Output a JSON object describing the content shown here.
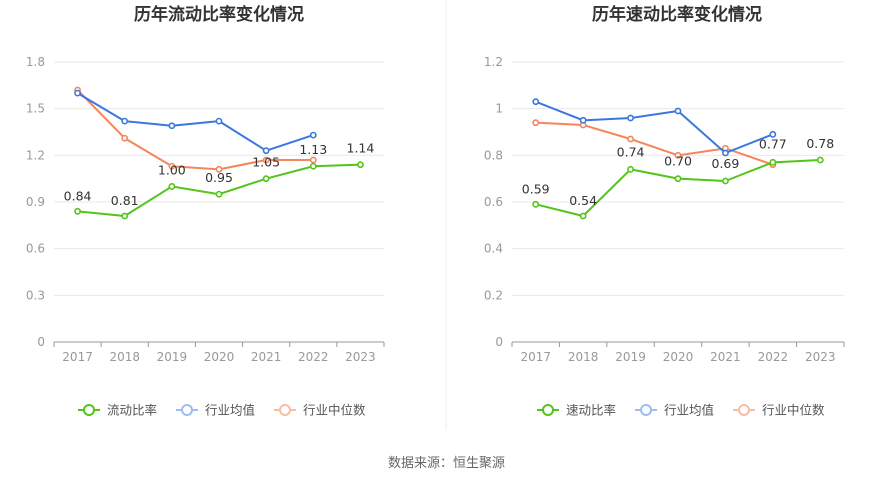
{
  "footer": {
    "source": "数据来源：恒生聚源"
  },
  "colors": {
    "company": "#52c41a",
    "industry_avg": "#3a78e0",
    "industry_median": "#f4865b"
  },
  "chart_data": [
    {
      "type": "line",
      "title": "历年流动比率变化情况",
      "categories": [
        "2017",
        "2018",
        "2019",
        "2020",
        "2021",
        "2022",
        "2023"
      ],
      "ylim": [
        0,
        1.8
      ],
      "yticks": [
        "0",
        "0.3",
        "0.6",
        "0.9",
        "1.2",
        "1.5",
        "1.8"
      ],
      "grid": true,
      "legend": "bottom",
      "series": [
        {
          "name": "流动比率",
          "key": "company",
          "values": [
            0.84,
            0.81,
            1.0,
            0.95,
            1.05,
            1.13,
            1.14
          ],
          "labels": [
            "0.84",
            "0.81",
            "1.00",
            "0.95",
            "1.05",
            "1.13",
            "1.14"
          ]
        },
        {
          "name": "行业均值",
          "key": "industry_avg",
          "values": [
            1.6,
            1.42,
            1.39,
            1.42,
            1.23,
            1.33,
            null
          ]
        },
        {
          "name": "行业中位数",
          "key": "industry_median",
          "values": [
            1.62,
            1.31,
            1.13,
            1.11,
            1.17,
            1.17,
            null
          ]
        }
      ]
    },
    {
      "type": "line",
      "title": "历年速动比率变化情况",
      "categories": [
        "2017",
        "2018",
        "2019",
        "2020",
        "2021",
        "2022",
        "2023"
      ],
      "ylim": [
        0,
        1.2
      ],
      "yticks": [
        "0",
        "0.2",
        "0.4",
        "0.6",
        "0.8",
        "1",
        "1.2"
      ],
      "grid": true,
      "legend": "bottom",
      "series": [
        {
          "name": "速动比率",
          "key": "company",
          "values": [
            0.59,
            0.54,
            0.74,
            0.7,
            0.69,
            0.77,
            0.78
          ],
          "labels": [
            "0.59",
            "0.54",
            "0.74",
            "0.70",
            "0.69",
            "0.77",
            "0.78"
          ]
        },
        {
          "name": "行业均值",
          "key": "industry_avg",
          "values": [
            1.03,
            0.95,
            0.96,
            0.99,
            0.81,
            0.89,
            null
          ]
        },
        {
          "name": "行业中位数",
          "key": "industry_median",
          "values": [
            0.94,
            0.93,
            0.87,
            0.8,
            0.83,
            0.76,
            null
          ]
        }
      ]
    }
  ]
}
